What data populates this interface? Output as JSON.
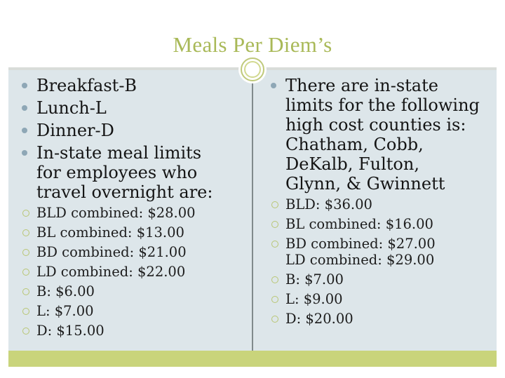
{
  "slide": {
    "title": "Meals Per Diem’s",
    "colors": {
      "title": "#a9b958",
      "content_bg": "#dde6ea",
      "footer_band": "#c9d47b",
      "bullet_primary": "#8ea7b6",
      "bullet_secondary": "#b9c674"
    },
    "left_column": {
      "bullets": [
        {
          "text": "Breakfast-B"
        },
        {
          "text": "Lunch-L"
        },
        {
          "text": "Dinner-D"
        },
        {
          "text": "In-state meal limits\nfor employees who\ntravel overnight are:"
        }
      ],
      "sub_bullets": [
        {
          "text": "BLD combined: $28.00"
        },
        {
          "text": "BL combined: $13.00"
        },
        {
          "text": "BD combined: $21.00"
        },
        {
          "text": "LD combined: $22.00"
        },
        {
          "text": "B: $6.00"
        },
        {
          "text": "L: $7.00"
        },
        {
          "text": "D: $15.00"
        }
      ]
    },
    "right_column": {
      "bullets": [
        {
          "text": "There are in-state\nlimits for the following\nhigh cost counties is:\nChatham, Cobb,\nDeKalb, Fulton,\nGlynn, & Gwinnett"
        }
      ],
      "sub_bullets": [
        {
          "text": "BLD: $36.00"
        },
        {
          "text": "BL combined: $16.00"
        },
        {
          "text": "BD combined: $27.00\nLD combined: $29.00"
        },
        {
          "text": "B: $7.00"
        },
        {
          "text": "L: $9.00"
        },
        {
          "text": "D: $20.00"
        }
      ]
    }
  }
}
